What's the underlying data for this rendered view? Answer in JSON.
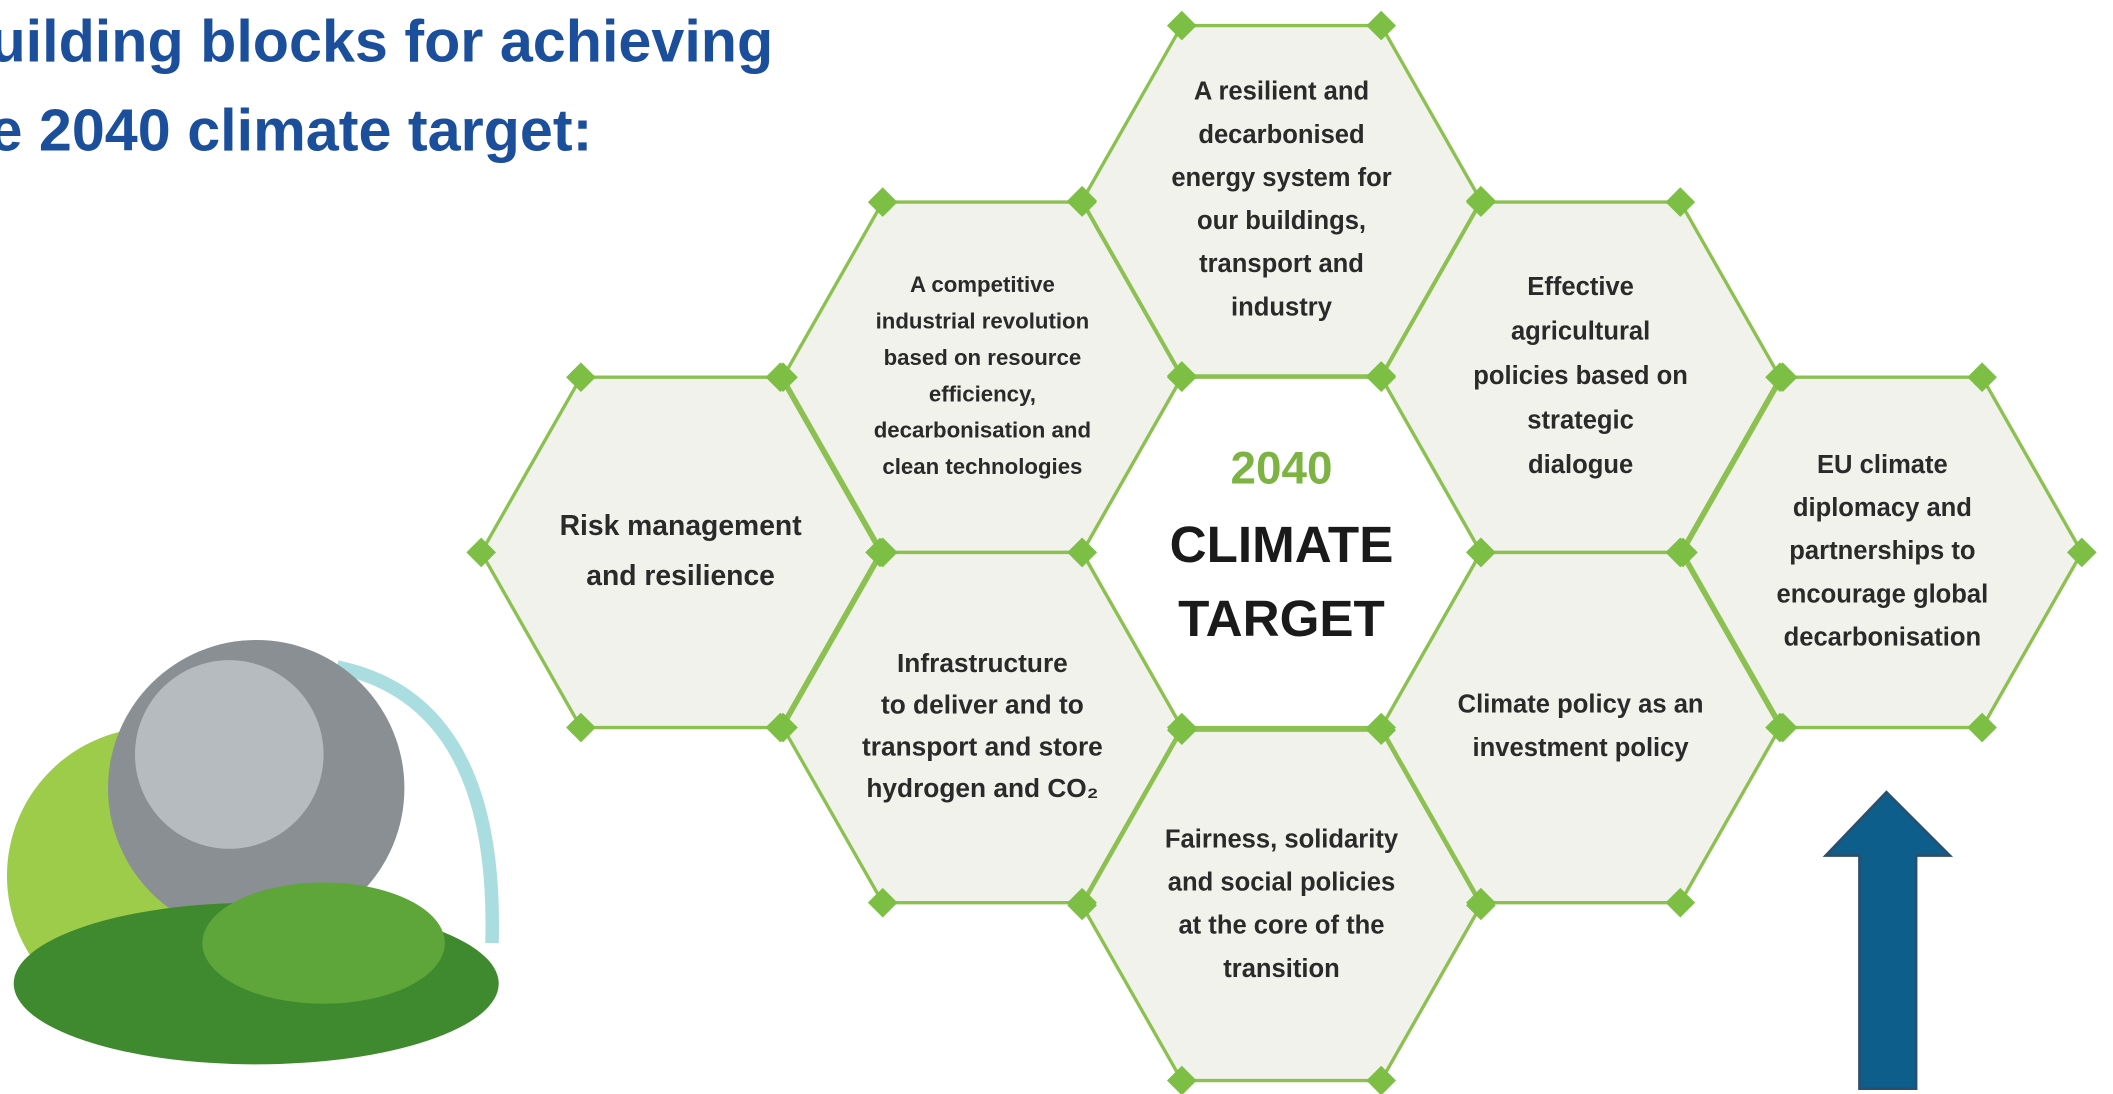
{
  "header": {
    "title_lines": [
      "uilding blocks for achieving",
      "e 2040 climate target:"
    ]
  },
  "center": {
    "year": "2040",
    "lines": [
      "CLIMATE",
      "TARGET"
    ]
  },
  "hexagons": [
    {
      "lines": [
        "A resilient and",
        "decarbonised",
        "energy system for",
        "our buildings,",
        "transport and",
        "industry"
      ]
    },
    {
      "lines": [
        "A competitive",
        "industrial revolution",
        "based on resource",
        "efficiency,",
        "decarbonisation and",
        "clean technologies"
      ]
    },
    {
      "lines": [
        "Effective",
        "agricultural",
        "policies based on",
        "strategic",
        "dialogue"
      ]
    },
    {
      "lines": [
        "Risk management",
        "and resilience"
      ]
    },
    {
      "lines": [
        "EU climate",
        "diplomacy and",
        "partnerships to",
        "encourage global",
        "decarbonisation"
      ]
    },
    {
      "lines": [
        "Infrastructure",
        "to deliver and to",
        "transport and store",
        "hydrogen and CO₂"
      ]
    },
    {
      "lines": [
        "Climate policy as an",
        "investment policy"
      ]
    },
    {
      "lines": [
        "Fairness, solidarity",
        "and social policies",
        "at the core of the",
        "transition"
      ]
    }
  ]
}
